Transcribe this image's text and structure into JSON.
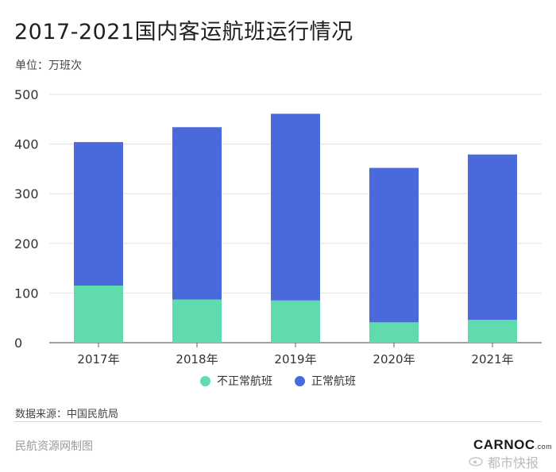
{
  "title": "2017-2021国内客运航班运行情况",
  "unit": "单位：万班次",
  "legend": {
    "abnormal": "不正常航班",
    "normal": "正常航班"
  },
  "colors": {
    "abnormal": "#5fdbae",
    "normal": "#4a6adc",
    "grid": "#e3e3e3",
    "axis": "#666666"
  },
  "source": "数据来源：中国民航局",
  "credit": "民航资源网制图",
  "logo": {
    "text": "CARNOC",
    "suffix": ".com"
  },
  "watermark": "都市快报",
  "chart_data": {
    "type": "bar",
    "stacked": true,
    "categories": [
      "2017年",
      "2018年",
      "2019年",
      "2020年",
      "2021年"
    ],
    "series": [
      {
        "name": "不正常航班",
        "values": [
          115,
          87,
          85,
          41,
          46
        ]
      },
      {
        "name": "正常航班",
        "values": [
          289,
          347,
          376,
          311,
          333
        ]
      }
    ],
    "ylim": [
      0,
      500
    ],
    "yticks": [
      0,
      100,
      200,
      300,
      400,
      500
    ],
    "grid": true,
    "legend_position": "bottom"
  }
}
